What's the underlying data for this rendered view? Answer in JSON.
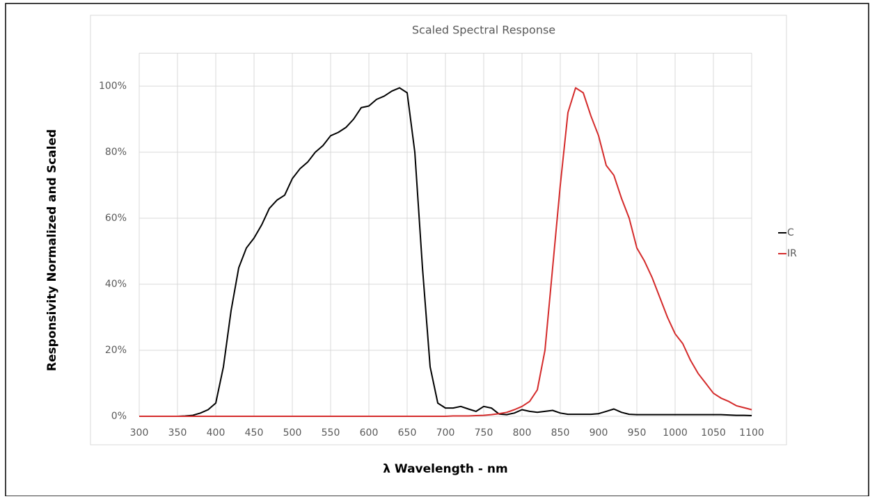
{
  "chart_data": {
    "type": "line",
    "title": "Scaled Spectral Response",
    "x_label": "λ Wavelength - nm",
    "y_label": "Responsivity Normalized and Scaled",
    "x": [
      300,
      310,
      320,
      330,
      340,
      350,
      360,
      370,
      380,
      390,
      400,
      410,
      420,
      430,
      440,
      450,
      460,
      470,
      480,
      490,
      500,
      510,
      520,
      530,
      540,
      550,
      560,
      570,
      580,
      590,
      600,
      610,
      620,
      630,
      640,
      650,
      660,
      670,
      680,
      690,
      700,
      710,
      720,
      730,
      740,
      750,
      760,
      770,
      780,
      790,
      800,
      810,
      820,
      830,
      840,
      850,
      860,
      870,
      880,
      890,
      900,
      910,
      920,
      930,
      940,
      950,
      960,
      970,
      980,
      990,
      1000,
      1010,
      1020,
      1030,
      1040,
      1050,
      1060,
      1070,
      1080,
      1090,
      1100
    ],
    "series": [
      {
        "name": "C",
        "color": "#000000",
        "values": [
          0,
          0,
          0,
          0,
          0,
          0,
          0.1,
          0.3,
          1,
          2,
          4,
          15,
          32,
          45,
          51,
          54,
          58,
          63,
          65.5,
          67,
          72,
          75,
          77,
          80,
          82,
          85,
          86,
          87.5,
          90,
          93.5,
          94,
          96,
          97,
          98.5,
          99.5,
          98,
          80,
          45,
          15,
          4,
          2.5,
          2.5,
          3,
          2.2,
          1.5,
          3,
          2.5,
          0.7,
          0.5,
          1,
          2,
          1.5,
          1.2,
          1.5,
          1.8,
          1,
          0.6,
          0.6,
          0.6,
          0.6,
          0.8,
          1.5,
          2.2,
          1.2,
          0.6,
          0.5,
          0.5,
          0.5,
          0.5,
          0.5,
          0.5,
          0.5,
          0.5,
          0.5,
          0.5,
          0.5,
          0.5,
          0.4,
          0.3,
          0.3,
          0.2
        ]
      },
      {
        "name": "IR",
        "color": "#d42a2a",
        "values": [
          0,
          0,
          0,
          0,
          0,
          0,
          0,
          0,
          0,
          0,
          0,
          0,
          0,
          0,
          0,
          0,
          0,
          0,
          0,
          0,
          0,
          0,
          0,
          0,
          0,
          0,
          0,
          0,
          0,
          0,
          0,
          0,
          0,
          0,
          0,
          0,
          0,
          0,
          0,
          0,
          0,
          0.1,
          0.1,
          0.1,
          0.2,
          0.3,
          0.5,
          0.8,
          1.2,
          2,
          3,
          4.5,
          8,
          20,
          45,
          70,
          92,
          99.5,
          98,
          91,
          85,
          76,
          73,
          66,
          60,
          51,
          47,
          42,
          36,
          30,
          25,
          22,
          17,
          13,
          10,
          7,
          5.5,
          4.5,
          3.2,
          2.6,
          2
        ]
      }
    ],
    "xlim": [
      300,
      1100
    ],
    "xticks": [
      300,
      350,
      400,
      450,
      500,
      550,
      600,
      650,
      700,
      750,
      800,
      850,
      900,
      950,
      1000,
      1050,
      1100
    ],
    "ylim": [
      0,
      110
    ],
    "yticks": [
      {
        "value": 0,
        "label": "0%"
      },
      {
        "value": 20,
        "label": "20%"
      },
      {
        "value": 40,
        "label": "40%"
      },
      {
        "value": 60,
        "label": "60%"
      },
      {
        "value": 80,
        "label": "80%"
      },
      {
        "value": 100,
        "label": "100%"
      }
    ],
    "grid": true,
    "legend": "right"
  }
}
